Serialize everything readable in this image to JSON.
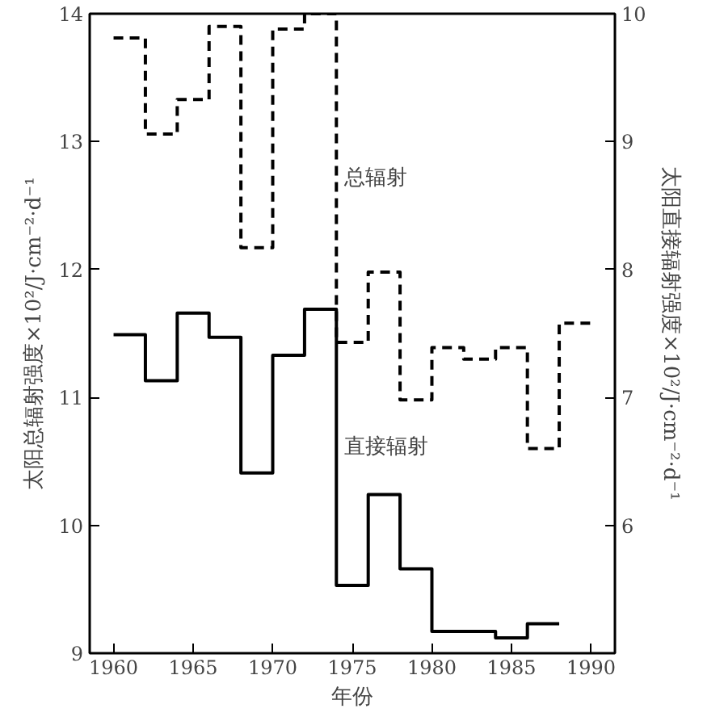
{
  "chart_data": {
    "type": "step",
    "xlabel": "年份",
    "ylabel": "太阳总辐射强度×10²/J·cm⁻²·d⁻¹",
    "y2label": "太阳直接辐射强度×10²/J·cm⁻²·d⁻¹",
    "xlim": [
      1958.5,
      1991.5
    ],
    "xticks": [
      1960,
      1965,
      1970,
      1975,
      1980,
      1985,
      1990
    ],
    "ylim": [
      9,
      14
    ],
    "yticks": [
      9,
      10,
      11,
      12,
      13,
      14
    ],
    "y2lim": [
      5,
      10
    ],
    "y2ticks": [
      {
        "value": 5,
        "label": null
      },
      6,
      7,
      8,
      9,
      10
    ],
    "grid": false,
    "series": [
      {
        "name": "总辐射",
        "color": "#000000",
        "line_style": "dashed",
        "x": [
          1960,
          1962,
          1964,
          1966,
          1968,
          1970,
          1972,
          1974,
          1976,
          1978,
          1980,
          1982,
          1984,
          1986,
          1988,
          1990
        ],
        "values": [
          13.81,
          13.06,
          13.33,
          13.9,
          12.17,
          13.88,
          14.0,
          11.43,
          11.98,
          10.98,
          11.39,
          11.3,
          11.39,
          10.6,
          11.58,
          11.58
        ]
      },
      {
        "name": "直接辐射",
        "color": "#000000",
        "line_style": "solid",
        "axis": "y2",
        "x": [
          1960,
          1962,
          1964,
          1966,
          1968,
          1970,
          1972,
          1974,
          1976,
          1978,
          1980,
          1982,
          1984,
          1986,
          1988
        ],
        "values": [
          7.49,
          7.13,
          7.66,
          7.47,
          6.41,
          7.33,
          7.69,
          5.53,
          6.24,
          5.66,
          5.17,
          5.17,
          5.12,
          5.23,
          5.23
        ]
      }
    ]
  }
}
